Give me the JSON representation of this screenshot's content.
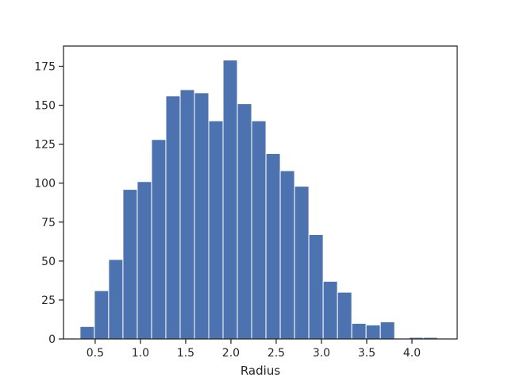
{
  "chart_data": {
    "type": "bar",
    "subtype": "histogram",
    "title": "",
    "xlabel": "Radius",
    "ylabel": "",
    "xlim": [
      0.15,
      4.5
    ],
    "ylim": [
      0,
      188
    ],
    "bin_edges": [
      0.333,
      0.491,
      0.649,
      0.807,
      0.965,
      1.123,
      1.281,
      1.439,
      1.597,
      1.755,
      1.913,
      2.071,
      2.229,
      2.387,
      2.545,
      2.703,
      2.861,
      3.019,
      3.177,
      3.335,
      3.493,
      3.651,
      3.809,
      3.967,
      4.125,
      4.283
    ],
    "values": [
      8,
      31,
      51,
      96,
      101,
      128,
      156,
      160,
      158,
      140,
      179,
      151,
      140,
      119,
      108,
      98,
      67,
      37,
      30,
      10,
      9,
      11,
      0,
      1,
      1
    ],
    "xticks": [
      0.5,
      1.0,
      1.5,
      2.0,
      2.5,
      3.0,
      3.5,
      4.0
    ],
    "xtick_labels": [
      "0.5",
      "1.0",
      "1.5",
      "2.0",
      "2.5",
      "3.0",
      "3.5",
      "4.0"
    ],
    "yticks": [
      0,
      25,
      50,
      75,
      100,
      125,
      150,
      175
    ],
    "ytick_labels": [
      "0",
      "25",
      "50",
      "75",
      "100",
      "125",
      "150",
      "175"
    ],
    "grid": false,
    "legend": "none",
    "colors": {
      "bar": "#4c72b0",
      "bar_edge": "#ffffff",
      "axes": "#262626"
    }
  }
}
